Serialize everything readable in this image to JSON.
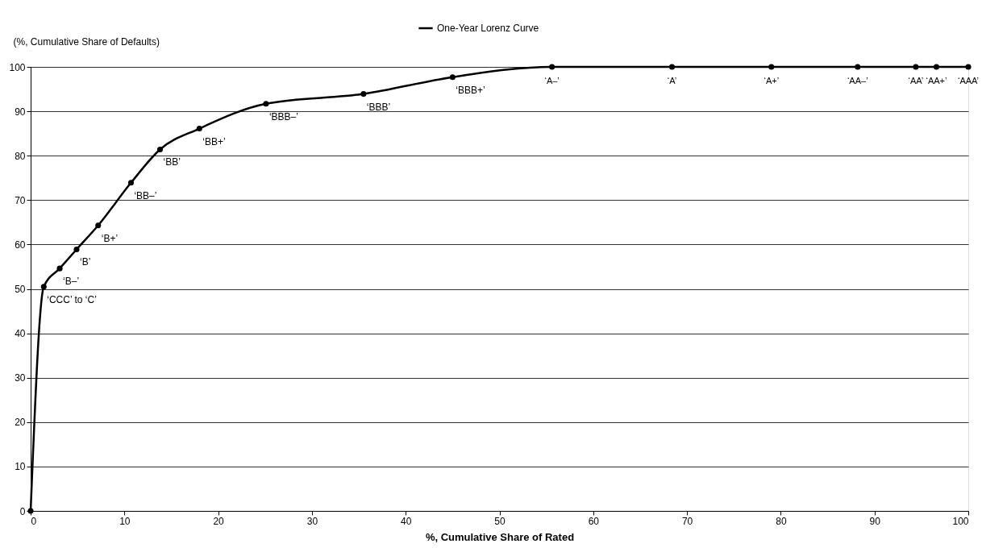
{
  "chart_data": {
    "type": "line",
    "x": [
      0,
      1.4,
      3.1,
      4.9,
      7.2,
      10.7,
      13.8,
      18.0,
      25.1,
      35.5,
      45.0,
      55.6,
      68.4,
      79.0,
      88.2,
      94.4,
      96.6,
      100
    ],
    "series": [
      {
        "name": "One-Year Lorenz Curve",
        "color": "#000000",
        "values": [
          0,
          50.5,
          54.6,
          58.9,
          64.3,
          73.9,
          81.4,
          86.1,
          91.7,
          93.9,
          97.7,
          100,
          100,
          100,
          100,
          100,
          100,
          100
        ]
      }
    ],
    "xlabel": "%, Cumulative Share of Rated",
    "ylabel": "(%, Cumulative Share of Defaults)",
    "xlim": [
      0,
      100
    ],
    "xticks": [
      0,
      10,
      20,
      30,
      40,
      50,
      60,
      70,
      80,
      90,
      100
    ],
    "ylim": [
      0,
      100
    ],
    "yticks": [
      0,
      10,
      20,
      30,
      40,
      50,
      60,
      70,
      80,
      90,
      100
    ],
    "grid": "y",
    "legend": "top",
    "marker": "circle",
    "line_style": "solid",
    "annotations": [
      {
        "text": "‘CCC’ to ‘C’",
        "x": 1.4,
        "y": 50.5
      },
      {
        "text": "‘B–’",
        "x": 3.1,
        "y": 54.6
      },
      {
        "text": "‘B’",
        "x": 4.9,
        "y": 58.9
      },
      {
        "text": "‘B+’",
        "x": 7.2,
        "y": 64.3
      },
      {
        "text": "‘BB–’",
        "x": 10.7,
        "y": 73.9
      },
      {
        "text": "‘BB’",
        "x": 13.8,
        "y": 81.4
      },
      {
        "text": "‘BB+’",
        "x": 18.0,
        "y": 86.1
      },
      {
        "text": "‘BBB–’",
        "x": 25.1,
        "y": 91.7
      },
      {
        "text": "‘BBB’",
        "x": 35.5,
        "y": 93.9
      },
      {
        "text": "‘BBB+’",
        "x": 45.0,
        "y": 97.7
      },
      {
        "text": "‘A–’",
        "x": 55.6,
        "y": 100
      },
      {
        "text": "‘A’",
        "x": 68.4,
        "y": 100
      },
      {
        "text": "‘A+’",
        "x": 79.0,
        "y": 100
      },
      {
        "text": "‘AA–’",
        "x": 88.2,
        "y": 100
      },
      {
        "text": "‘AA’",
        "x": 94.4,
        "y": 100
      },
      {
        "text": "‘AA+’",
        "x": 96.6,
        "y": 100
      },
      {
        "text": "‘AAA’",
        "x": 100,
        "y": 100
      }
    ]
  }
}
